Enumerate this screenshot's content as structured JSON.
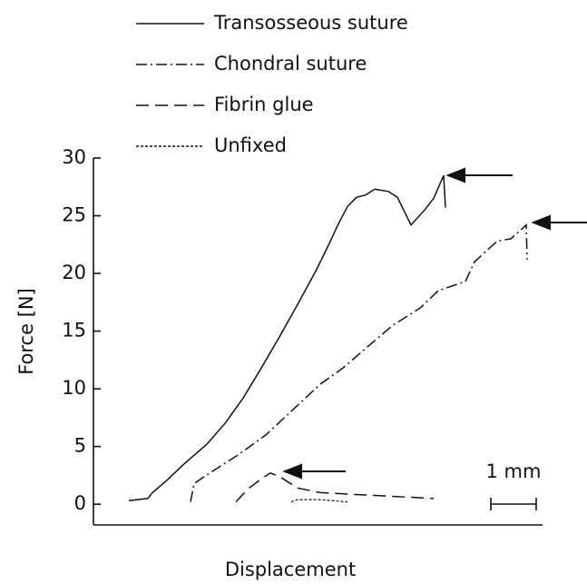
{
  "chart_data": {
    "type": "line",
    "x_label": "Displacement",
    "y_label": "Force [N]",
    "xlim": [
      0,
      9.9
    ],
    "ylim": [
      -1.8,
      30
    ],
    "yticks": [
      0,
      5,
      10,
      15,
      20,
      25,
      30
    ],
    "legend": "top-left",
    "scale_bar": {
      "label": "1 mm",
      "length": 1
    },
    "series": [
      {
        "name": "Transosseous suture",
        "color": "#111111",
        "dash": "solid",
        "x": [
          0.78,
          1.2,
          1.3,
          1.6,
          2.0,
          2.5,
          2.9,
          3.3,
          3.7,
          4.1,
          4.5,
          4.9,
          5.2,
          5.4,
          5.6,
          5.8,
          6.0,
          6.2,
          6.5,
          6.7,
          7.0,
          7.3,
          7.5,
          7.72,
          7.76
        ],
        "values": [
          0.3,
          0.5,
          1.0,
          2.0,
          3.5,
          5.2,
          7.0,
          9.2,
          11.8,
          14.5,
          17.3,
          20.2,
          22.6,
          24.3,
          25.8,
          26.6,
          26.8,
          27.3,
          27.1,
          26.6,
          24.2,
          25.5,
          26.5,
          28.5,
          25.7
        ]
      },
      {
        "name": "Chondral suture",
        "color": "#111111",
        "dash": "dashdot",
        "x": [
          2.14,
          2.22,
          2.6,
          3.2,
          3.8,
          4.4,
          5.0,
          5.5,
          6.0,
          6.6,
          7.2,
          7.6,
          8.2,
          8.4,
          8.9,
          9.2,
          9.54,
          9.56
        ],
        "values": [
          0.2,
          1.8,
          2.8,
          4.3,
          6.0,
          8.2,
          10.4,
          11.8,
          13.5,
          15.5,
          17.0,
          18.5,
          19.3,
          21.0,
          22.8,
          23.0,
          24.2,
          21.2
        ]
      },
      {
        "name": "Fibrin glue",
        "color": "#111111",
        "dash": "dashed",
        "x": [
          3.14,
          3.4,
          3.7,
          3.9,
          4.1,
          4.5,
          5.0,
          6.0,
          7.5
        ],
        "values": [
          0.2,
          1.3,
          2.2,
          2.7,
          2.4,
          1.4,
          1.0,
          0.8,
          0.5
        ]
      },
      {
        "name": "Unfixed",
        "color": "#111111",
        "dash": "dotted",
        "x": [
          4.36,
          4.5,
          5.0,
          5.6
        ],
        "values": [
          0.2,
          0.4,
          0.4,
          0.2
        ]
      }
    ]
  }
}
